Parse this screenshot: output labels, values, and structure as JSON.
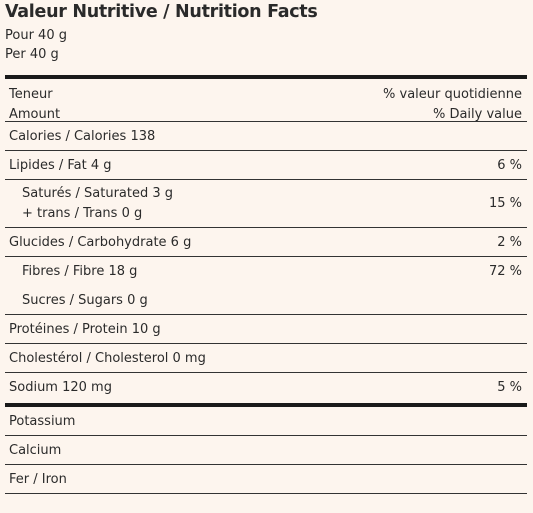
{
  "title": "Valeur Nutritive / Nutrition Facts",
  "serving": {
    "fr": "Pour 40 g",
    "en": "Per 40 g"
  },
  "header": {
    "left_fr": "Teneur",
    "left_en": "Amount",
    "right_fr": "% valeur quotidienne",
    "right_en": "% Daily value"
  },
  "rows": {
    "calories": {
      "label": "Calories / Calories 138",
      "dv": ""
    },
    "fat": {
      "label": "Lipides / Fat 4 g",
      "dv": "6 %"
    },
    "saturated": {
      "label": "Saturés / Saturated 3 g",
      "label2": "+ trans / Trans 0 g",
      "dv": "15 %"
    },
    "carbohydrate": {
      "label": "Glucides / Carbohydrate 6 g",
      "dv": "2 %"
    },
    "fibre": {
      "label": "Fibres / Fibre 18 g",
      "dv": "72 %"
    },
    "sugars": {
      "label": "Sucres / Sugars 0 g",
      "dv": ""
    },
    "protein": {
      "label": "Protéines / Protein 10 g",
      "dv": ""
    },
    "cholesterol": {
      "label": "Cholestérol / Cholesterol 0 mg",
      "dv": ""
    },
    "sodium": {
      "label": "Sodium 120 mg",
      "dv": "5 %"
    }
  },
  "minerals": {
    "potassium": "Potassium",
    "calcium": "Calcium",
    "iron": "Fer / Iron"
  }
}
